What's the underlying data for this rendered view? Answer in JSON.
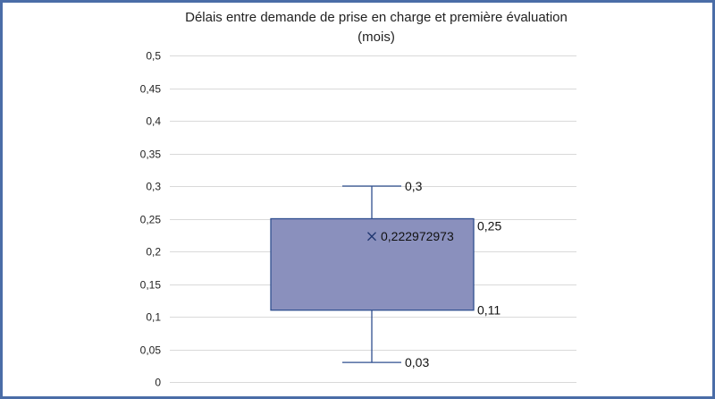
{
  "chart_data": {
    "type": "box",
    "title": "Délais entre demande de prise en charge et première évaluation",
    "subtitle": "(mois)",
    "ylim": [
      0,
      0.5
    ],
    "y_ticks": [
      "0",
      "0,05",
      "0,1",
      "0,15",
      "0,2",
      "0,25",
      "0,3",
      "0,35",
      "0,4",
      "0,45",
      "0,5"
    ],
    "y_tick_values": [
      0,
      0.05,
      0.1,
      0.15,
      0.2,
      0.25,
      0.3,
      0.35,
      0.4,
      0.45,
      0.5
    ],
    "grid": true,
    "box": {
      "min": 0.03,
      "q1": 0.11,
      "q3": 0.25,
      "max": 0.3,
      "mean": 0.222972973,
      "labels": {
        "min": "0,03",
        "q1": "0,11",
        "q3": "0,25",
        "max": "0,3",
        "mean": "0,222972973"
      }
    },
    "colors": {
      "box_fill": "#8a90bd",
      "box_stroke": "#2f4f8f",
      "whisker": "#2f4f8f",
      "frame": "#4a6da7"
    }
  }
}
